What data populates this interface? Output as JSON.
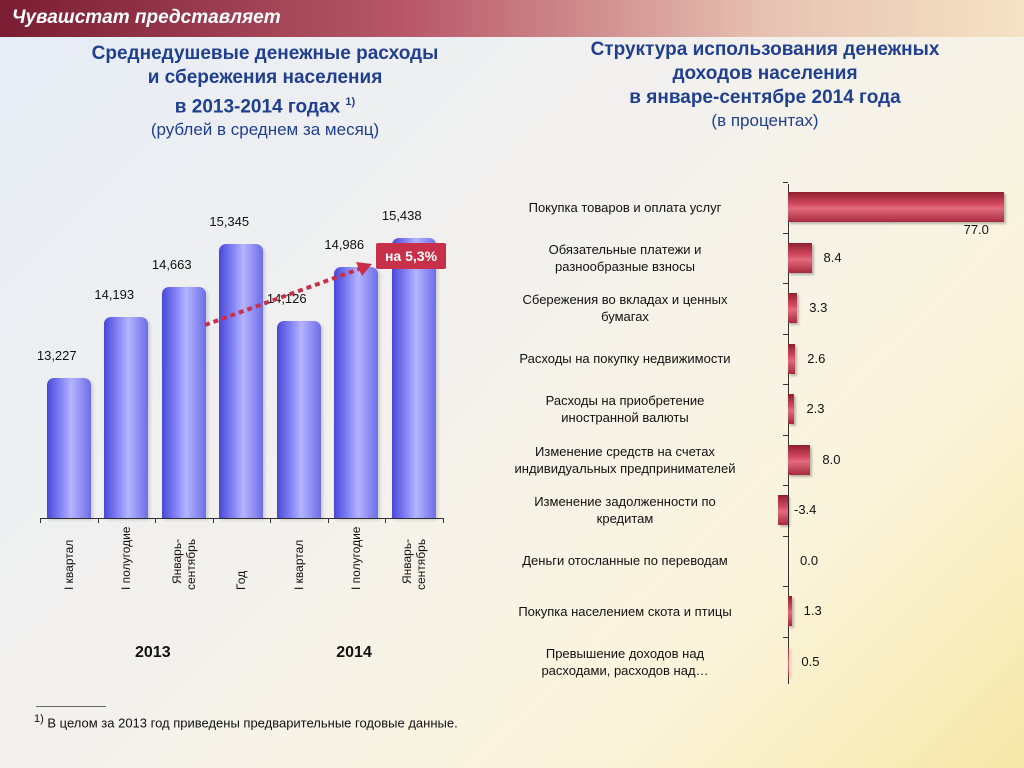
{
  "header": {
    "title": "Чувашстат представляет"
  },
  "left_title": {
    "line1": "Среднедушевые  денежные расходы",
    "line2": "и сбережения  населения",
    "line3": "в 2013-2014 годах",
    "line3_sup": "1)",
    "line4": "(рублей в среднем за месяц)"
  },
  "right_title": {
    "line1": "Структура использования денежных",
    "line2": "доходов населения",
    "line3": "в январе-сентябре 2014 года",
    "line4": "(в процентах)"
  },
  "growth_badge": "на 5,3%",
  "footnote": {
    "mark": "1)",
    "text": " В целом за 2013 год приведены предварительные годовые данные."
  },
  "chart_data": [
    {
      "type": "bar",
      "categories": [
        "I квартал",
        "I полугодие",
        "Январь-сентябрь",
        "Год",
        "I квартал",
        "I полугодие",
        "Январь-сентябрь"
      ],
      "category_lines": [
        [
          "I квартал"
        ],
        [
          "I полугодие"
        ],
        [
          "Январь-",
          "сентябрь"
        ],
        [
          "Год"
        ],
        [
          "I квартал"
        ],
        [
          "I полугодие"
        ],
        [
          "Январь-",
          "сентябрь"
        ]
      ],
      "value_labels": [
        "13,227",
        "14,193",
        "14,663",
        "15,345",
        "14,126",
        "14,986",
        "15,438"
      ],
      "values": [
        13227,
        14193,
        14663,
        15345,
        14126,
        14986,
        15438
      ],
      "groups": [
        {
          "label": "2013",
          "from": 0,
          "to": 3
        },
        {
          "label": "2014",
          "from": 4,
          "to": 6
        }
      ],
      "ylim": [
        11000,
        15600
      ],
      "color": "#7070f0"
    },
    {
      "type": "bar",
      "orientation": "horizontal",
      "categories": [
        [
          "Покупка товаров и оплата услуг"
        ],
        [
          "Обязательные платежи и",
          "разнообразные взносы"
        ],
        [
          "Сбережения во вкладах и ценных",
          "бумагах"
        ],
        [
          "Расходы на покупку недвижимости"
        ],
        [
          "Расходы на приобретение",
          "иностранной валюты"
        ],
        [
          "Изменение средств на счетах",
          "индивидуальных предпринимателей"
        ],
        [
          "Изменение задолженности по",
          "кредитам"
        ],
        [
          "Деньги отосланные по переводам"
        ],
        [
          "Покупка населением скота и птицы"
        ],
        [
          "Превышение доходов над",
          "расходами, расходов над…"
        ]
      ],
      "values": [
        77.0,
        8.4,
        3.3,
        2.6,
        2.3,
        8.0,
        -3.4,
        0.0,
        1.3,
        0.5
      ],
      "value_labels": [
        "77.0",
        "8.4",
        "3.3",
        "2.6",
        "2.3",
        "8.0",
        "-3.4",
        "0.0",
        "1.3",
        "0.5"
      ],
      "xlim": [
        -3.4,
        77.0
      ],
      "color": "#c8304a"
    }
  ]
}
